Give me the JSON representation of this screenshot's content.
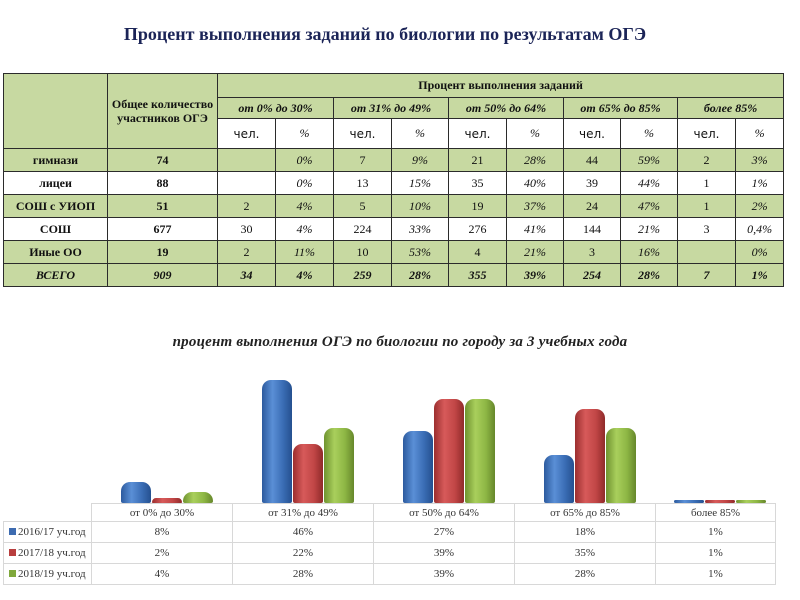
{
  "page_title": "Процент выполнения заданий по биологии по результатам ОГЭ",
  "table": {
    "header_total": "Общее количество участников ОГЭ",
    "header_group": "Процент выполнения заданий",
    "ranges": [
      "от 0% до 30%",
      "от 31% до 49%",
      "от 50% до 64%",
      "от 65% до 85%",
      "более 85%"
    ],
    "sub_people": "чел.",
    "sub_pct": "%",
    "rows": [
      {
        "label": "гимнази",
        "total": "74",
        "cells": [
          "",
          "0%",
          "7",
          "9%",
          "21",
          "28%",
          "44",
          "59%",
          "2",
          "3%"
        ],
        "bg": "g"
      },
      {
        "label": "лицеи",
        "total": "88",
        "cells": [
          "",
          "0%",
          "13",
          "15%",
          "35",
          "40%",
          "39",
          "44%",
          "1",
          "1%"
        ],
        "bg": "w"
      },
      {
        "label": "СОШ с УИОП",
        "total": "51",
        "cells": [
          "2",
          "4%",
          "5",
          "10%",
          "19",
          "37%",
          "24",
          "47%",
          "1",
          "2%"
        ],
        "bg": "g"
      },
      {
        "label": "СОШ",
        "total": "677",
        "cells": [
          "30",
          "4%",
          "224",
          "33%",
          "276",
          "41%",
          "144",
          "21%",
          "3",
          "0,4%"
        ],
        "bg": "w"
      },
      {
        "label": "Иные ОО",
        "total": "19",
        "cells": [
          "2",
          "11%",
          "10",
          "53%",
          "4",
          "21%",
          "3",
          "16%",
          "",
          "0%"
        ],
        "bg": "g"
      },
      {
        "label": "ВСЕГО",
        "total": "909",
        "cells": [
          "34",
          "4%",
          "259",
          "28%",
          "355",
          "39%",
          "254",
          "28%",
          "7",
          "1%"
        ],
        "bg": "g"
      }
    ],
    "colors": {
      "green": "#c7d9a1",
      "white": "#ffffff",
      "border": "#2b2b2b"
    }
  },
  "chart_data": {
    "type": "bar",
    "title": "процент выполнения ОГЭ по биологии по городу за 3 учебных года",
    "categories": [
      "от 0% до 30%",
      "от 31% до 49%",
      "от 50% до 64%",
      "от 65% до 85%",
      "более 85%"
    ],
    "series": [
      {
        "name": "2016/17 уч.год",
        "values": [
          8,
          46,
          27,
          18,
          1
        ],
        "labels": [
          "8%",
          "46%",
          "27%",
          "18%",
          "1%"
        ],
        "color": "#4a7cc4"
      },
      {
        "name": "2017/18 уч.год",
        "values": [
          2,
          22,
          39,
          35,
          1
        ],
        "labels": [
          "2%",
          "22%",
          "39%",
          "35%",
          "1%"
        ],
        "color": "#c44a4a"
      },
      {
        "name": "2018/19 уч.год",
        "values": [
          4,
          28,
          39,
          28,
          1
        ],
        "labels": [
          "4%",
          "28%",
          "39%",
          "28%",
          "1%"
        ],
        "color": "#8db644"
      }
    ],
    "xlabel": "",
    "ylabel": "",
    "ylim": [
      0,
      50
    ],
    "grid": false,
    "legend_position": "data-table",
    "unit": "%"
  }
}
